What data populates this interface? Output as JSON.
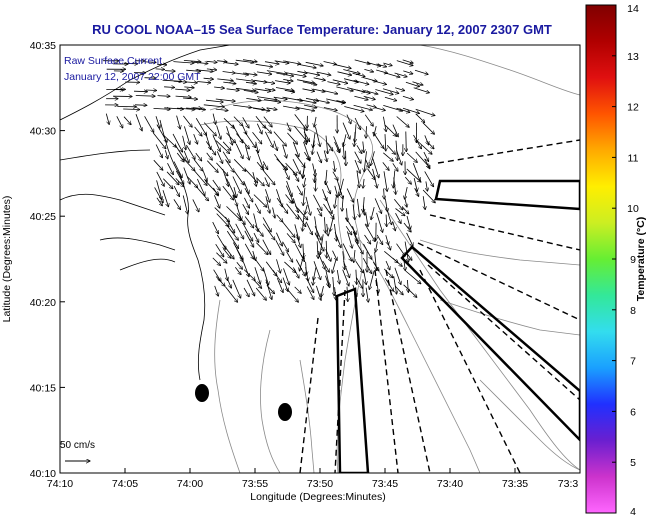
{
  "title": "RU COOL  NOAA–15  Sea Surface Temperature:  January 12, 2007 2307 GMT",
  "legend": {
    "line1": "Raw Surface Current",
    "line2": "January 12, 2007 22:00 GMT"
  },
  "scale_label": "50 cm/s",
  "axes": {
    "xlabel": "Longitude (Degrees:Minutes)",
    "ylabel": "Latitude (Degrees:Minutes)",
    "x_ticks": [
      "74:10",
      "74:05",
      "74:00",
      "73:55",
      "73:50",
      "73:45",
      "73:40",
      "73:35",
      "73:3"
    ],
    "y_ticks": [
      "40:35",
      "40:30",
      "40:25",
      "40:20",
      "40:15",
      "40:10"
    ]
  },
  "colorbar": {
    "label": "Temperature (°C)",
    "ticks": [
      "14",
      "13",
      "12",
      "11",
      "10",
      "9",
      "8",
      "7",
      "6",
      "5",
      "4"
    ],
    "range": [
      4,
      14
    ],
    "colors": [
      "#ff66ff",
      "#cc33cc",
      "#6a1fd0",
      "#2030ff",
      "#1aa0ff",
      "#33ddee",
      "#33e899",
      "#66ee33",
      "#ccee22",
      "#ffee00",
      "#ffaa00",
      "#ff5500",
      "#e01010",
      "#b00000",
      "#800000"
    ]
  },
  "chart_data": {
    "type": "vector_field",
    "title": "RU COOL  NOAA–15  Sea Surface Temperature:  January 12, 2007 2307 GMT",
    "xlabel": "Longitude (Degrees:Minutes)",
    "ylabel": "Latitude (Degrees:Minutes)",
    "xlim": [
      "74:10",
      "73:30"
    ],
    "ylim": [
      "40:10",
      "40:35"
    ],
    "vector_scale": "50 cm/s",
    "legend": [
      "Raw Surface Current",
      "January 12, 2007 22:00 GMT"
    ]
  }
}
